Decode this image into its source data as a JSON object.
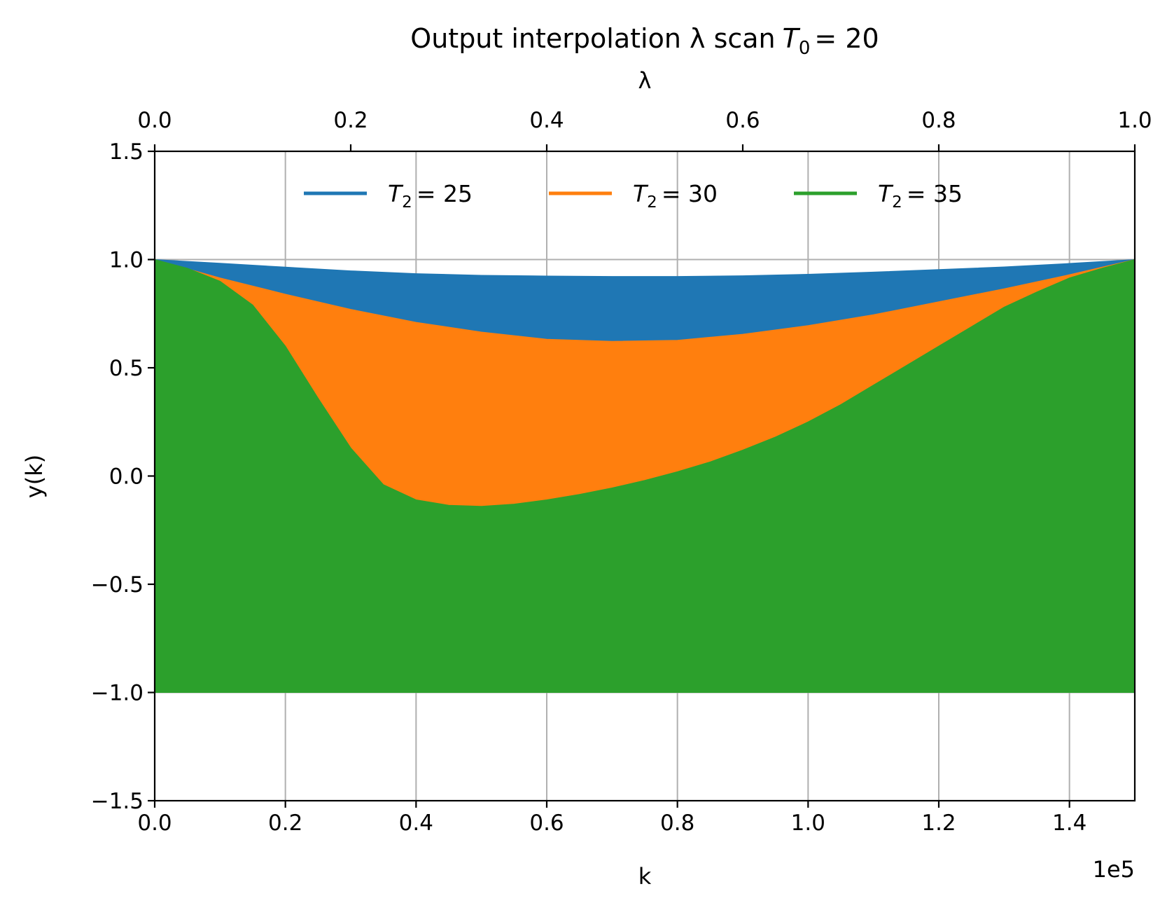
{
  "chart_data": {
    "type": "area",
    "title": "Output interpolation λ scan",
    "title_math": {
      "var": "T",
      "sub": "0",
      "rel": "= 20"
    },
    "xlabel": "k",
    "ylabel": "y(k)",
    "x_offset_label": "1e5",
    "xlim": [
      0,
      150000
    ],
    "ylim": [
      -1.5,
      1.5
    ],
    "x_ticks": [
      0,
      20000,
      40000,
      60000,
      80000,
      100000,
      120000,
      140000
    ],
    "x_tick_labels": [
      "0.0",
      "0.2",
      "0.4",
      "0.6",
      "0.8",
      "1.0",
      "1.2",
      "1.4"
    ],
    "y_ticks": [
      -1.5,
      -1.0,
      -0.5,
      0.0,
      0.5,
      1.0,
      1.5
    ],
    "y_tick_labels": [
      "−1.5",
      "−1.0",
      "−0.5",
      "0.0",
      "0.5",
      "1.0",
      "1.5"
    ],
    "top_axis": {
      "label": "λ",
      "lim": [
        0,
        1
      ],
      "ticks": [
        0,
        0.2,
        0.4,
        0.6,
        0.8,
        1.0
      ],
      "tick_labels": [
        "0.0",
        "0.2",
        "0.4",
        "0.6",
        "0.8",
        "1.0"
      ]
    },
    "grid": true,
    "legend": {
      "placement": "upper-center",
      "columns": 3
    },
    "series": [
      {
        "name": "T₂ = 25",
        "label_math": {
          "var": "T",
          "sub": "2",
          "rel": "= 25"
        },
        "color": "#1f77b4",
        "x": [
          0,
          10000,
          20000,
          30000,
          40000,
          50000,
          60000,
          70000,
          80000,
          90000,
          100000,
          110000,
          120000,
          130000,
          140000,
          150000
        ],
        "upper": [
          1.0,
          0.983,
          0.965,
          0.948,
          0.935,
          0.927,
          0.924,
          0.922,
          0.922,
          0.925,
          0.932,
          0.942,
          0.954,
          0.966,
          0.982,
          1.0
        ],
        "lower": [
          -1.0,
          -0.99,
          -0.975,
          -0.96,
          -0.947,
          -0.937,
          -0.93,
          -0.927,
          -0.927,
          -0.93,
          -0.938,
          -0.948,
          -0.96,
          -0.973,
          -0.988,
          -1.0
        ]
      },
      {
        "name": "T₂ = 30",
        "label_math": {
          "var": "T",
          "sub": "2",
          "rel": "= 30"
        },
        "color": "#ff7f0e",
        "x": [
          0,
          10000,
          20000,
          30000,
          40000,
          50000,
          60000,
          70000,
          80000,
          90000,
          100000,
          110000,
          120000,
          130000,
          140000,
          150000
        ],
        "upper": [
          1.0,
          0.915,
          0.84,
          0.77,
          0.71,
          0.665,
          0.632,
          0.622,
          0.627,
          0.655,
          0.695,
          0.745,
          0.805,
          0.865,
          0.93,
          1.0
        ],
        "lower": [
          -1.0,
          -0.975,
          -0.945,
          -0.915,
          -0.895,
          -0.88,
          -0.875,
          -0.874,
          -0.876,
          -0.882,
          -0.893,
          -0.91,
          -0.932,
          -0.955,
          -0.978,
          -1.0
        ]
      },
      {
        "name": "T₂ = 35",
        "label_math": {
          "var": "T",
          "sub": "2",
          "rel": "= 35"
        },
        "color": "#2ca02c",
        "x": [
          0,
          5000,
          10000,
          15000,
          20000,
          25000,
          30000,
          35000,
          40000,
          45000,
          50000,
          55000,
          60000,
          65000,
          70000,
          75000,
          80000,
          85000,
          90000,
          95000,
          100000,
          105000,
          110000,
          115000,
          120000,
          125000,
          130000,
          135000,
          140000,
          145000,
          150000
        ],
        "upper": [
          1.0,
          0.96,
          0.9,
          0.79,
          0.6,
          0.36,
          0.13,
          -0.04,
          -0.11,
          -0.135,
          -0.14,
          -0.13,
          -0.11,
          -0.085,
          -0.055,
          -0.02,
          0.02,
          0.065,
          0.12,
          0.18,
          0.25,
          0.33,
          0.42,
          0.51,
          0.6,
          0.69,
          0.78,
          0.85,
          0.915,
          0.96,
          1.0
        ],
        "lower": [
          -1.0,
          -1.0,
          -1.0,
          -1.0,
          -1.0,
          -1.0,
          -1.0,
          -1.0,
          -1.0,
          -1.0,
          -1.0,
          -1.0,
          -1.0,
          -1.0,
          -1.0,
          -1.0,
          -1.0,
          -1.0,
          -1.0,
          -1.0,
          -1.0,
          -1.0,
          -1.0,
          -1.0,
          -1.0,
          -1.0,
          -1.0,
          -1.0,
          -1.0,
          -1.0,
          -1.0
        ]
      }
    ]
  }
}
